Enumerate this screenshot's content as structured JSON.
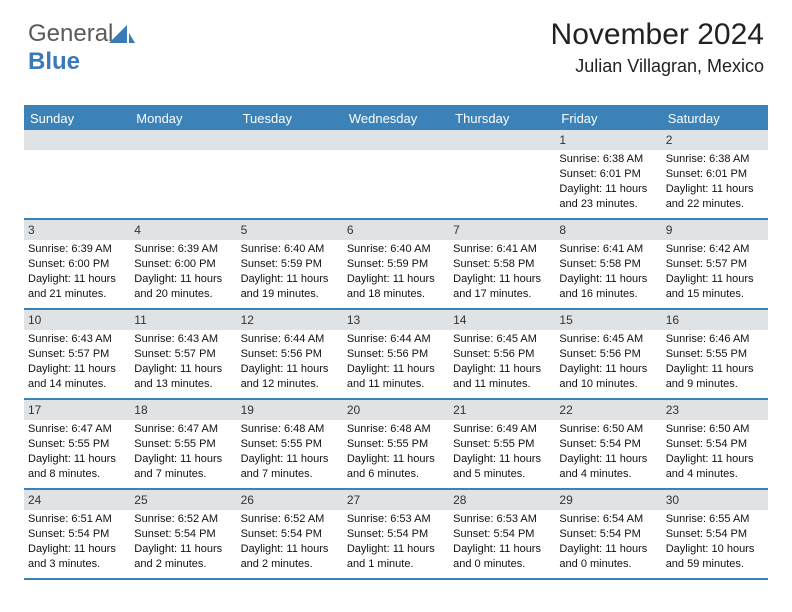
{
  "logo": {
    "text1": "General",
    "text2": "Blue",
    "color1": "#5a5a5a",
    "color2": "#3a7ab8"
  },
  "title": "November 2024",
  "location": "Julian Villagran, Mexico",
  "weekdays": [
    "Sunday",
    "Monday",
    "Tuesday",
    "Wednesday",
    "Thursday",
    "Friday",
    "Saturday"
  ],
  "colors": {
    "header_bg": "#3b82b8",
    "header_text": "#ffffff",
    "daynum_bg": "#e0e3e5",
    "border": "#3b82b8",
    "text": "#111111"
  },
  "fonts": {
    "title_size": 30,
    "location_size": 18,
    "weekday_size": 13,
    "cell_size": 11
  },
  "weeks": [
    [
      {
        "n": "",
        "sunrise": "",
        "sunset": "",
        "daylight": ""
      },
      {
        "n": "",
        "sunrise": "",
        "sunset": "",
        "daylight": ""
      },
      {
        "n": "",
        "sunrise": "",
        "sunset": "",
        "daylight": ""
      },
      {
        "n": "",
        "sunrise": "",
        "sunset": "",
        "daylight": ""
      },
      {
        "n": "",
        "sunrise": "",
        "sunset": "",
        "daylight": ""
      },
      {
        "n": "1",
        "sunrise": "Sunrise: 6:38 AM",
        "sunset": "Sunset: 6:01 PM",
        "daylight": "Daylight: 11 hours and 23 minutes."
      },
      {
        "n": "2",
        "sunrise": "Sunrise: 6:38 AM",
        "sunset": "Sunset: 6:01 PM",
        "daylight": "Daylight: 11 hours and 22 minutes."
      }
    ],
    [
      {
        "n": "3",
        "sunrise": "Sunrise: 6:39 AM",
        "sunset": "Sunset: 6:00 PM",
        "daylight": "Daylight: 11 hours and 21 minutes."
      },
      {
        "n": "4",
        "sunrise": "Sunrise: 6:39 AM",
        "sunset": "Sunset: 6:00 PM",
        "daylight": "Daylight: 11 hours and 20 minutes."
      },
      {
        "n": "5",
        "sunrise": "Sunrise: 6:40 AM",
        "sunset": "Sunset: 5:59 PM",
        "daylight": "Daylight: 11 hours and 19 minutes."
      },
      {
        "n": "6",
        "sunrise": "Sunrise: 6:40 AM",
        "sunset": "Sunset: 5:59 PM",
        "daylight": "Daylight: 11 hours and 18 minutes."
      },
      {
        "n": "7",
        "sunrise": "Sunrise: 6:41 AM",
        "sunset": "Sunset: 5:58 PM",
        "daylight": "Daylight: 11 hours and 17 minutes."
      },
      {
        "n": "8",
        "sunrise": "Sunrise: 6:41 AM",
        "sunset": "Sunset: 5:58 PM",
        "daylight": "Daylight: 11 hours and 16 minutes."
      },
      {
        "n": "9",
        "sunrise": "Sunrise: 6:42 AM",
        "sunset": "Sunset: 5:57 PM",
        "daylight": "Daylight: 11 hours and 15 minutes."
      }
    ],
    [
      {
        "n": "10",
        "sunrise": "Sunrise: 6:43 AM",
        "sunset": "Sunset: 5:57 PM",
        "daylight": "Daylight: 11 hours and 14 minutes."
      },
      {
        "n": "11",
        "sunrise": "Sunrise: 6:43 AM",
        "sunset": "Sunset: 5:57 PM",
        "daylight": "Daylight: 11 hours and 13 minutes."
      },
      {
        "n": "12",
        "sunrise": "Sunrise: 6:44 AM",
        "sunset": "Sunset: 5:56 PM",
        "daylight": "Daylight: 11 hours and 12 minutes."
      },
      {
        "n": "13",
        "sunrise": "Sunrise: 6:44 AM",
        "sunset": "Sunset: 5:56 PM",
        "daylight": "Daylight: 11 hours and 11 minutes."
      },
      {
        "n": "14",
        "sunrise": "Sunrise: 6:45 AM",
        "sunset": "Sunset: 5:56 PM",
        "daylight": "Daylight: 11 hours and 11 minutes."
      },
      {
        "n": "15",
        "sunrise": "Sunrise: 6:45 AM",
        "sunset": "Sunset: 5:56 PM",
        "daylight": "Daylight: 11 hours and 10 minutes."
      },
      {
        "n": "16",
        "sunrise": "Sunrise: 6:46 AM",
        "sunset": "Sunset: 5:55 PM",
        "daylight": "Daylight: 11 hours and 9 minutes."
      }
    ],
    [
      {
        "n": "17",
        "sunrise": "Sunrise: 6:47 AM",
        "sunset": "Sunset: 5:55 PM",
        "daylight": "Daylight: 11 hours and 8 minutes."
      },
      {
        "n": "18",
        "sunrise": "Sunrise: 6:47 AM",
        "sunset": "Sunset: 5:55 PM",
        "daylight": "Daylight: 11 hours and 7 minutes."
      },
      {
        "n": "19",
        "sunrise": "Sunrise: 6:48 AM",
        "sunset": "Sunset: 5:55 PM",
        "daylight": "Daylight: 11 hours and 7 minutes."
      },
      {
        "n": "20",
        "sunrise": "Sunrise: 6:48 AM",
        "sunset": "Sunset: 5:55 PM",
        "daylight": "Daylight: 11 hours and 6 minutes."
      },
      {
        "n": "21",
        "sunrise": "Sunrise: 6:49 AM",
        "sunset": "Sunset: 5:55 PM",
        "daylight": "Daylight: 11 hours and 5 minutes."
      },
      {
        "n": "22",
        "sunrise": "Sunrise: 6:50 AM",
        "sunset": "Sunset: 5:54 PM",
        "daylight": "Daylight: 11 hours and 4 minutes."
      },
      {
        "n": "23",
        "sunrise": "Sunrise: 6:50 AM",
        "sunset": "Sunset: 5:54 PM",
        "daylight": "Daylight: 11 hours and 4 minutes."
      }
    ],
    [
      {
        "n": "24",
        "sunrise": "Sunrise: 6:51 AM",
        "sunset": "Sunset: 5:54 PM",
        "daylight": "Daylight: 11 hours and 3 minutes."
      },
      {
        "n": "25",
        "sunrise": "Sunrise: 6:52 AM",
        "sunset": "Sunset: 5:54 PM",
        "daylight": "Daylight: 11 hours and 2 minutes."
      },
      {
        "n": "26",
        "sunrise": "Sunrise: 6:52 AM",
        "sunset": "Sunset: 5:54 PM",
        "daylight": "Daylight: 11 hours and 2 minutes."
      },
      {
        "n": "27",
        "sunrise": "Sunrise: 6:53 AM",
        "sunset": "Sunset: 5:54 PM",
        "daylight": "Daylight: 11 hours and 1 minute."
      },
      {
        "n": "28",
        "sunrise": "Sunrise: 6:53 AM",
        "sunset": "Sunset: 5:54 PM",
        "daylight": "Daylight: 11 hours and 0 minutes."
      },
      {
        "n": "29",
        "sunrise": "Sunrise: 6:54 AM",
        "sunset": "Sunset: 5:54 PM",
        "daylight": "Daylight: 11 hours and 0 minutes."
      },
      {
        "n": "30",
        "sunrise": "Sunrise: 6:55 AM",
        "sunset": "Sunset: 5:54 PM",
        "daylight": "Daylight: 10 hours and 59 minutes."
      }
    ]
  ]
}
